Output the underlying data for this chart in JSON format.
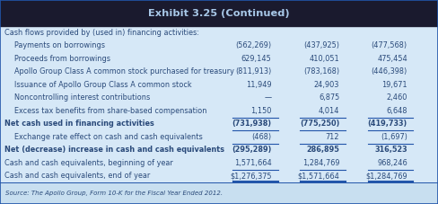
{
  "title": "Exhibit 3.25 (Continued)",
  "title_bg": "#1a1a2e",
  "title_color": "#a8c8e8",
  "table_bg": "#d6e8f7",
  "content_bg": "#daeaf8",
  "rows": [
    {
      "label": "Cash flows provided by (used in) financing activities:",
      "vals": [
        "",
        "",
        ""
      ],
      "bold": false,
      "indent": 0,
      "section_header": true
    },
    {
      "label": "Payments on borrowings",
      "vals": [
        "(562,269)",
        "(437,925)",
        "(477,568)"
      ],
      "bold": false,
      "indent": 1
    },
    {
      "label": "Proceeds from borrowings",
      "vals": [
        "629,145",
        "410,051",
        "475,454"
      ],
      "bold": false,
      "indent": 1
    },
    {
      "label": "Apollo Group Class A common stock purchased for treasury",
      "vals": [
        "(811,913)",
        "(783,168)",
        "(446,398)"
      ],
      "bold": false,
      "indent": 1
    },
    {
      "label": "Issuance of Apollo Group Class A common stock",
      "vals": [
        "11,949",
        "24,903",
        "19,671"
      ],
      "bold": false,
      "indent": 1
    },
    {
      "label": "Noncontrolling interest contributions",
      "vals": [
        "—",
        "6,875",
        "2,460"
      ],
      "bold": false,
      "indent": 1
    },
    {
      "label": "Excess tax benefits from share-based compensation",
      "vals": [
        "1,150",
        "4,014",
        "6,648"
      ],
      "bold": false,
      "indent": 1
    },
    {
      "label": "Net cash used in financing activities",
      "vals": [
        "(731,938)",
        "(775,250)",
        "(419,733)"
      ],
      "bold": true,
      "indent": 0,
      "top_border": true
    },
    {
      "label": "Exchange rate effect on cash and cash equivalents",
      "vals": [
        "(468)",
        "712",
        "(1,697)"
      ],
      "bold": false,
      "indent": 1,
      "top_border": true
    },
    {
      "label": "Net (decrease) increase in cash and cash equivalents",
      "vals": [
        "(295,289)",
        "286,895",
        "316,523"
      ],
      "bold": true,
      "indent": 0,
      "top_border": true
    },
    {
      "label": "Cash and cash equivalents, beginning of year",
      "vals": [
        "1,571,664",
        "1,284,769",
        "968,246"
      ],
      "bold": false,
      "indent": 0
    },
    {
      "label": "Cash and cash equivalents, end of year",
      "vals": [
        "$1,276,375",
        "$1,571,664",
        "$1,284,769"
      ],
      "bold": false,
      "indent": 0,
      "top_border": true,
      "double_underline": true
    }
  ],
  "source": "Source: The Apollo Group, Form 10-K for the Fiscal Year Ended 2012.",
  "source_bg": "#c8dff0",
  "text_color": "#2a4a7a",
  "border_color": "#2255aa",
  "line_color": "#2255aa"
}
